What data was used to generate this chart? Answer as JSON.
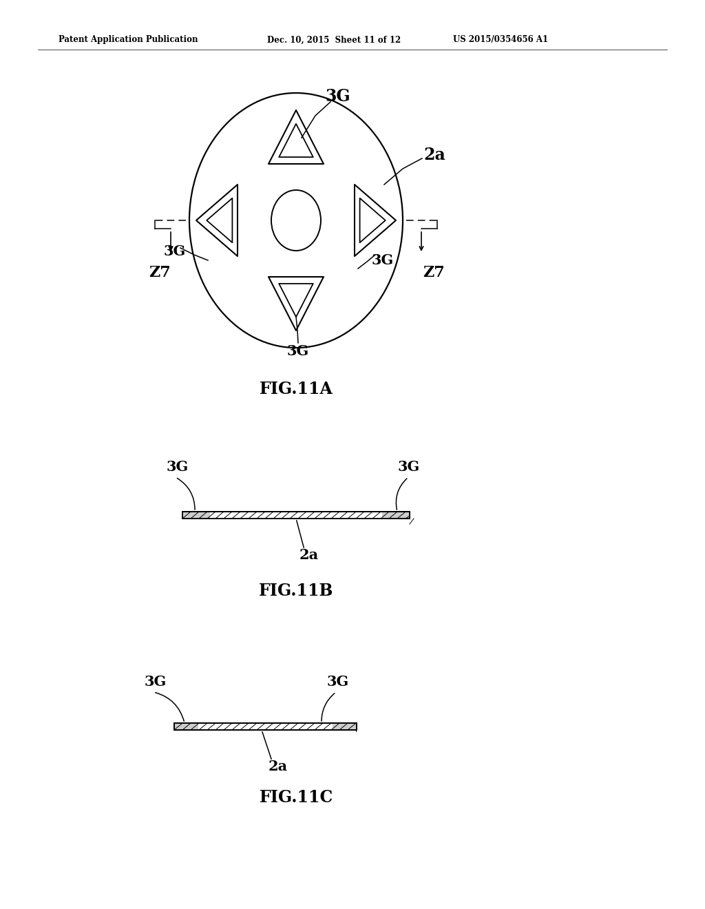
{
  "bg_color": "#ffffff",
  "header_left": "Patent Application Publication",
  "header_center": "Dec. 10, 2015  Sheet 11 of 12",
  "header_right": "US 2015/0354656 A1",
  "fig11a_label": "FIG.11A",
  "fig11b_label": "FIG.11B",
  "fig11c_label": "FIG.11C",
  "label_3G": "3G",
  "label_2a": "2a",
  "label_Z7": "Z7"
}
